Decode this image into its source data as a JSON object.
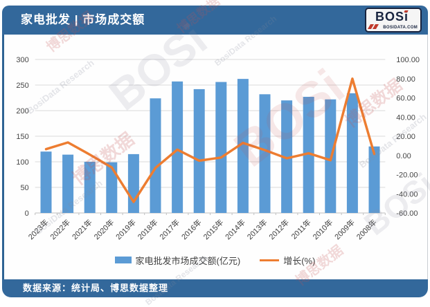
{
  "header": {
    "title": "家电批发 | 市场成交额",
    "logo": {
      "text_main": "BOS",
      "text_i": "i",
      "subtext": "BOSIDATA.COM"
    }
  },
  "footer": {
    "source": "数据来源：统计局、博思数据整理"
  },
  "watermark": {
    "cn": "博思数据",
    "en": "BosiData Research",
    "logo": "BOSi",
    "site": "BOSIDATA.COM"
  },
  "colors": {
    "header_bg": "#33689B",
    "bar": "#5B9BD5",
    "line": "#ED7D31",
    "grid": "#D9D9D9",
    "axis": "#BFBFBF",
    "tick_text": "#444444"
  },
  "chart_data": {
    "type": "bar",
    "subtype": "combo bar+line, dual axis",
    "title": "家电批发 | 市场成交额",
    "categories": [
      "2023年",
      "2022年",
      "2021年",
      "2020年",
      "2019年",
      "2018年",
      "2017年",
      "2016年",
      "2015年",
      "2014年",
      "2013年",
      "2012年",
      "2011年",
      "2010年",
      "2009年",
      "2008年"
    ],
    "series": [
      {
        "name": "家电批发市场成交额(亿元)",
        "type": "bar",
        "axis": "left",
        "color": "#5B9BD5",
        "values": [
          120,
          114,
          100,
          99,
          115,
          224,
          257,
          242,
          256,
          262,
          232,
          220,
          227,
          222,
          234,
          130
        ]
      },
      {
        "name": "增长(%)",
        "type": "line",
        "axis": "right",
        "color": "#ED7D31",
        "values": [
          6.5,
          13.5,
          0.8,
          -12.5,
          -48.5,
          -13.0,
          6.0,
          -5.5,
          -2.2,
          13.0,
          5.5,
          -3.0,
          2.2,
          -5.0,
          80.0,
          1.5
        ]
      }
    ],
    "left_axis": {
      "min": 0,
      "max": 300,
      "step": 50,
      "ticks": [
        "0",
        "50",
        "100",
        "150",
        "200",
        "250",
        "300"
      ]
    },
    "right_axis": {
      "min": -60,
      "max": 100,
      "step": 20,
      "ticks": [
        "-60.00",
        "-40.00",
        "-20.00",
        "0.00",
        "20.00",
        "40.00",
        "60.00",
        "80.00",
        "100.00"
      ]
    },
    "grid": true,
    "legend_position": "bottom"
  }
}
